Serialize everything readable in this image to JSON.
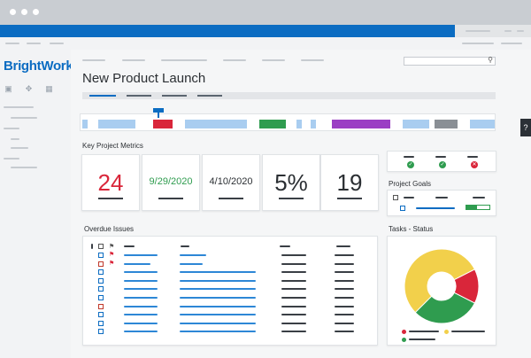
{
  "app": {
    "logo_text": "BrightWork"
  },
  "page": {
    "title": "New Product Launch"
  },
  "sections": {
    "metrics_title": "Key Project Metrics",
    "goals_title": "Project Goals",
    "issues_title": "Overdue Issues",
    "tasks_title": "Tasks - Status"
  },
  "metrics": [
    {
      "value": "24",
      "color": "#d9263a"
    },
    {
      "value": "9/29/2020",
      "color": "#2f9c4f"
    },
    {
      "value": "4/10/2020",
      "color": "#2b2f33"
    },
    {
      "value": "5%",
      "color": "#2b2f33"
    },
    {
      "value": "19",
      "color": "#2b2f33"
    }
  ],
  "colors": {
    "brand_blue": "#0b6cc2",
    "red": "#d9263a",
    "green": "#2f9c4f",
    "yellow": "#f2d04b",
    "purple": "#9b3fc4",
    "light_blue": "#a9cdf0"
  },
  "icons": {
    "help": "?",
    "search": "search-icon"
  },
  "tasks_chart": {
    "type": "pie",
    "slices": [
      {
        "label": "",
        "value": 55,
        "color": "#f2d04b"
      },
      {
        "label": "",
        "value": 15,
        "color": "#d9263a"
      },
      {
        "label": "",
        "value": 30,
        "color": "#2f9c4f"
      }
    ]
  }
}
